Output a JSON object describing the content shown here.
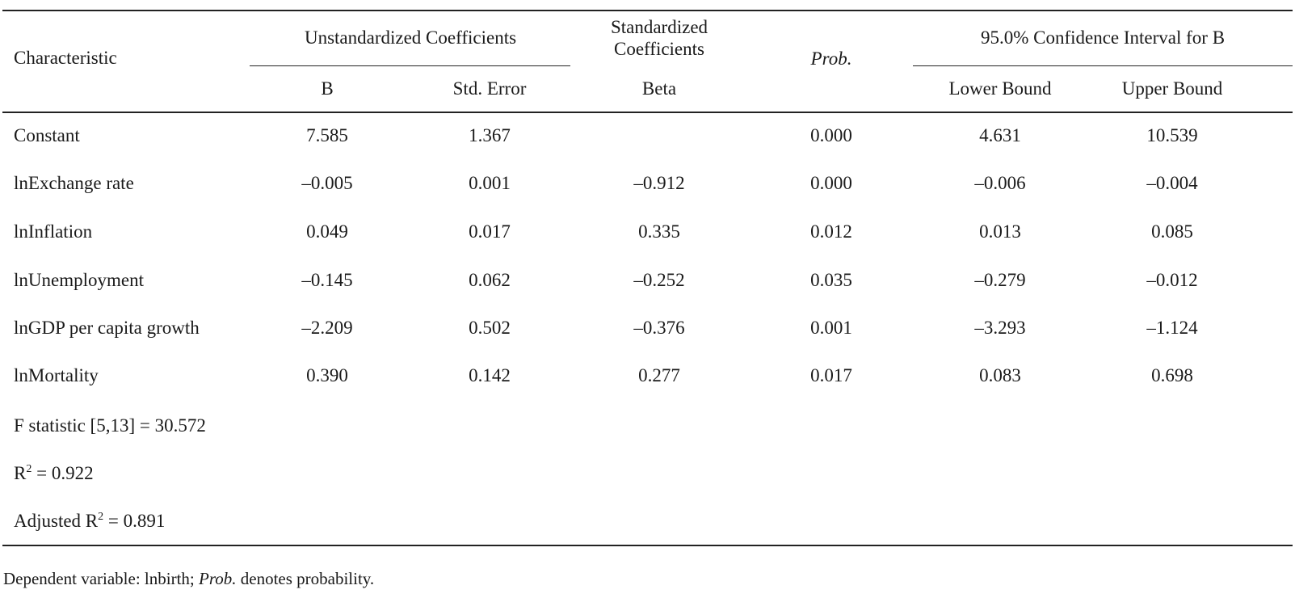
{
  "headers": {
    "characteristic": "Characteristic",
    "unstandardized": "Unstandardized Coefficients",
    "standardized_line1": "Standardized",
    "standardized_line2": "Coefficients",
    "prob": "Prob.",
    "ci": "95.0% Confidence Interval for B",
    "b": "B",
    "std_error": "Std. Error",
    "beta": "Beta",
    "lower": "Lower Bound",
    "upper": "Upper Bound"
  },
  "rows": [
    {
      "label": "Constant",
      "b": "7.585",
      "se": "1.367",
      "beta": "",
      "prob": "0.000",
      "lower": "4.631",
      "upper": "10.539"
    },
    {
      "label": "lnExchange rate",
      "b": "–0.005",
      "se": "0.001",
      "beta": "–0.912",
      "prob": "0.000",
      "lower": "–0.006",
      "upper": "–0.004"
    },
    {
      "label": "lnInflation",
      "b": "0.049",
      "se": "0.017",
      "beta": "0.335",
      "prob": "0.012",
      "lower": "0.013",
      "upper": "0.085"
    },
    {
      "label": "lnUnemployment",
      "b": "–0.145",
      "se": "0.062",
      "beta": "–0.252",
      "prob": "0.035",
      "lower": "–0.279",
      "upper": "–0.012"
    },
    {
      "label": "lnGDP per capita growth",
      "b": "–2.209",
      "se": "0.502",
      "beta": "–0.376",
      "prob": "0.001",
      "lower": "–3.293",
      "upper": "–1.124"
    },
    {
      "label": "lnMortality",
      "b": "0.390",
      "se": "0.142",
      "beta": "0.277",
      "prob": "0.017",
      "lower": "0.083",
      "upper": "0.698"
    }
  ],
  "stats": {
    "f_statistic": "F statistic [5,13] = 30.572",
    "r2_prefix": "R",
    "r2_sup": "2",
    "r2_value": " = 0.922",
    "adj_r2_prefix": "Adjusted R",
    "adj_r2_sup": "2",
    "adj_r2_value": " = 0.891"
  },
  "footnote": {
    "before": "Dependent variable: lnbirth; ",
    "prob_italic": "Prob.",
    "after": " denotes probability."
  }
}
